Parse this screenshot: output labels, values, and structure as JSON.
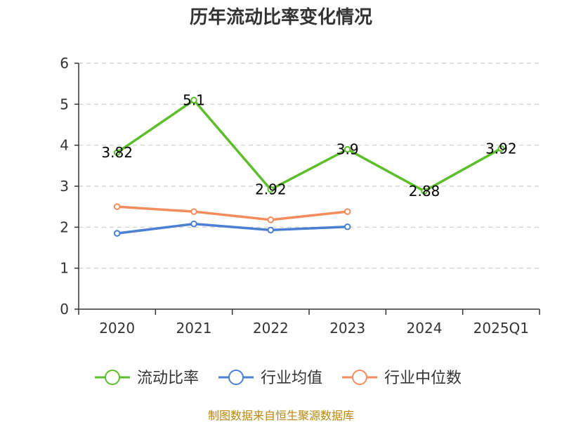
{
  "chart_data": {
    "type": "line",
    "title": "历年流动比率变化情况",
    "categories": [
      "2020",
      "2021",
      "2022",
      "2023",
      "2024",
      "2025Q1"
    ],
    "ylim": [
      0,
      6
    ],
    "yticks": [
      0,
      1,
      2,
      3,
      4,
      5,
      6
    ],
    "grid": "horizontal-dashed",
    "legend_position": "bottom",
    "series": [
      {
        "name": "流动比率",
        "color": "#5cbf2a",
        "values": [
          3.82,
          5.1,
          2.92,
          3.9,
          2.88,
          3.92
        ],
        "labels": [
          "3.82",
          "5.1",
          "2.92",
          "3.9",
          "2.88",
          "3.92"
        ],
        "show_labels": true
      },
      {
        "name": "行业均值",
        "color": "#4a7fd4",
        "values": [
          1.85,
          2.08,
          1.93,
          2.01,
          null,
          null
        ],
        "show_labels": false
      },
      {
        "name": "行业中位数",
        "color": "#f58c5c",
        "values": [
          2.5,
          2.38,
          2.18,
          2.38,
          null,
          null
        ],
        "show_labels": false
      }
    ]
  },
  "source_note": "制图数据来自恒生聚源数据库"
}
